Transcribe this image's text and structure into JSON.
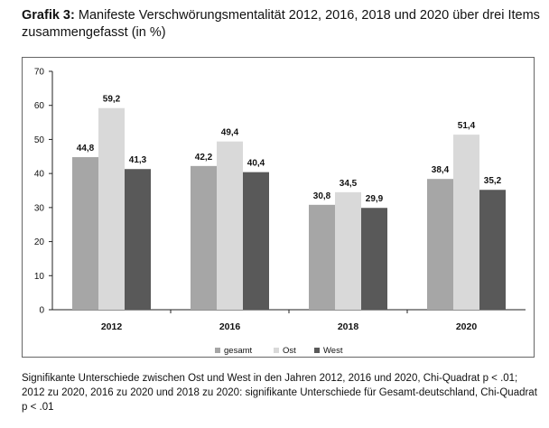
{
  "header": {
    "prefix": "Grafik 3:",
    "title": "Manifeste Verschwörungsmentalität 2012, 2016, 2018 und 2020 über drei Items zusammengefasst (in %)"
  },
  "chart_data": {
    "type": "bar",
    "categories": [
      "2012",
      "2016",
      "2018",
      "2020"
    ],
    "series": [
      {
        "name": "gesamt",
        "color": "#a6a6a6",
        "values": [
          44.8,
          42.2,
          30.8,
          38.4
        ],
        "labels": [
          "44,8",
          "42,2",
          "30,8",
          "38,4"
        ]
      },
      {
        "name": "Ost",
        "color": "#d9d9d9",
        "values": [
          59.2,
          49.4,
          34.5,
          51.4
        ],
        "labels": [
          "59,2",
          "49,4",
          "34,5",
          "51,4"
        ]
      },
      {
        "name": "West",
        "color": "#595959",
        "values": [
          41.3,
          40.4,
          29.9,
          35.2
        ],
        "labels": [
          "41,3",
          "40,4",
          "29,9",
          "35,2"
        ]
      }
    ],
    "yticks": [
      "0",
      "10",
      "20",
      "30",
      "40",
      "50",
      "60",
      "70"
    ],
    "ylim": [
      0,
      70
    ],
    "grid": false,
    "legend_position": "bottom"
  },
  "footnote": "Signifikante Unterschiede zwischen Ost und West in den Jahren 2012, 2016 und 2020, Chi-Quadrat p < .01; 2012 zu 2020, 2016 zu 2020 und 2018 zu 2020: signifikante Unterschiede für Gesamt-deutschland, Chi-Quadrat p < .01"
}
